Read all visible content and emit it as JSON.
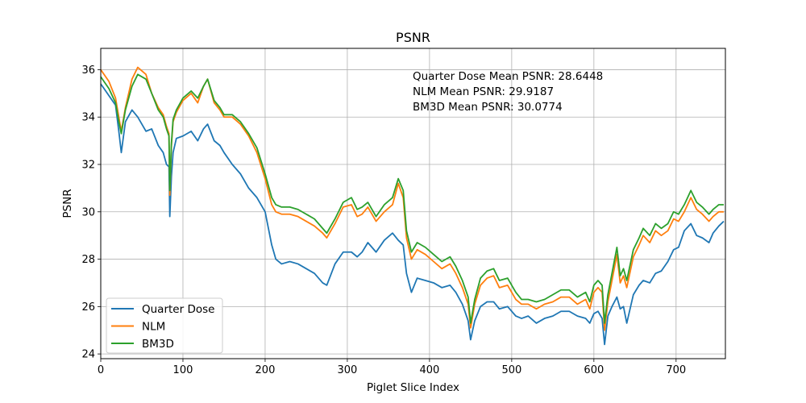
{
  "chart_data": {
    "type": "line",
    "title": "PSNR",
    "xlabel": "Piglet Slice Index",
    "ylabel": "PSNR",
    "xlim": [
      0,
      760
    ],
    "ylim": [
      23.8,
      36.9
    ],
    "xticks": [
      0,
      100,
      200,
      300,
      400,
      500,
      600,
      700
    ],
    "yticks": [
      24,
      26,
      28,
      30,
      32,
      34,
      36
    ],
    "grid": true,
    "legend_position": "lower-left",
    "annotations": [
      "Quarter Dose Mean PSNR: 28.6448",
      "NLM Mean PSNR: 29.9187",
      "BM3D Mean PSNR: 30.0774"
    ],
    "series": [
      {
        "name": "Quarter Dose",
        "color": "#1f77b4",
        "x": [
          0,
          10,
          18,
          22,
          25,
          30,
          38,
          45,
          55,
          62,
          70,
          76,
          80,
          83,
          84,
          86,
          88,
          92,
          100,
          110,
          118,
          125,
          130,
          138,
          145,
          150,
          160,
          170,
          180,
          190,
          200,
          208,
          213,
          220,
          230,
          240,
          250,
          260,
          270,
          275,
          285,
          295,
          305,
          312,
          318,
          325,
          335,
          345,
          355,
          362,
          368,
          372,
          378,
          385,
          395,
          405,
          415,
          425,
          432,
          440,
          447,
          450,
          455,
          462,
          470,
          478,
          485,
          495,
          505,
          512,
          520,
          530,
          540,
          550,
          560,
          570,
          580,
          590,
          595,
          600,
          605,
          610,
          613,
          617,
          622,
          628,
          632,
          636,
          640,
          648,
          655,
          660,
          668,
          675,
          682,
          690,
          697,
          703,
          710,
          718,
          725,
          732,
          740,
          745,
          752,
          758
        ],
        "values": [
          35.4,
          34.9,
          34.5,
          33.4,
          32.5,
          33.8,
          34.3,
          34.0,
          33.4,
          33.5,
          32.8,
          32.5,
          32.0,
          31.9,
          29.8,
          31.5,
          32.5,
          33.1,
          33.2,
          33.4,
          33.0,
          33.5,
          33.7,
          33.0,
          32.8,
          32.5,
          32.0,
          31.6,
          31.0,
          30.6,
          30.0,
          28.6,
          28.0,
          27.8,
          27.9,
          27.8,
          27.6,
          27.4,
          27.0,
          26.9,
          27.8,
          28.3,
          28.3,
          28.1,
          28.3,
          28.7,
          28.3,
          28.8,
          29.1,
          28.8,
          28.6,
          27.4,
          26.6,
          27.2,
          27.1,
          27.0,
          26.8,
          26.9,
          26.6,
          26.1,
          25.4,
          24.6,
          25.4,
          26.0,
          26.2,
          26.2,
          25.9,
          26.0,
          25.6,
          25.5,
          25.6,
          25.3,
          25.5,
          25.6,
          25.8,
          25.8,
          25.6,
          25.5,
          25.3,
          25.7,
          25.8,
          25.5,
          24.4,
          25.6,
          26.0,
          26.4,
          25.9,
          26.0,
          25.3,
          26.5,
          26.9,
          27.1,
          27.0,
          27.4,
          27.5,
          27.9,
          28.4,
          28.5,
          29.2,
          29.5,
          29.0,
          28.9,
          28.7,
          29.1,
          29.4,
          29.6
        ]
      },
      {
        "name": "NLM",
        "color": "#ff7f0e",
        "x": [
          0,
          10,
          18,
          22,
          25,
          30,
          38,
          45,
          55,
          62,
          70,
          76,
          80,
          83,
          84,
          86,
          88,
          92,
          100,
          110,
          118,
          125,
          130,
          138,
          145,
          150,
          160,
          170,
          180,
          190,
          200,
          208,
          213,
          220,
          230,
          240,
          250,
          260,
          270,
          275,
          285,
          295,
          305,
          312,
          318,
          325,
          335,
          345,
          355,
          362,
          368,
          372,
          378,
          385,
          395,
          405,
          415,
          425,
          432,
          440,
          447,
          450,
          455,
          462,
          470,
          478,
          485,
          495,
          505,
          512,
          520,
          530,
          540,
          550,
          560,
          570,
          580,
          590,
          595,
          600,
          605,
          610,
          613,
          617,
          622,
          628,
          632,
          636,
          640,
          648,
          655,
          660,
          668,
          675,
          682,
          690,
          697,
          703,
          710,
          718,
          725,
          732,
          740,
          745,
          752,
          758
        ],
        "values": [
          36.0,
          35.5,
          34.8,
          34.0,
          33.4,
          34.4,
          35.6,
          36.1,
          35.8,
          35.0,
          34.4,
          34.1,
          33.6,
          33.3,
          30.7,
          32.8,
          33.8,
          34.2,
          34.7,
          35.0,
          34.6,
          35.3,
          35.6,
          34.6,
          34.3,
          34.0,
          34.0,
          33.7,
          33.2,
          32.5,
          31.4,
          30.3,
          30.0,
          29.9,
          29.9,
          29.8,
          29.6,
          29.4,
          29.1,
          28.9,
          29.5,
          30.2,
          30.3,
          29.8,
          29.9,
          30.2,
          29.6,
          30.0,
          30.3,
          31.2,
          30.6,
          28.9,
          28.0,
          28.4,
          28.2,
          27.9,
          27.6,
          27.8,
          27.4,
          26.8,
          26.1,
          25.1,
          26.1,
          26.9,
          27.2,
          27.3,
          26.8,
          26.9,
          26.3,
          26.1,
          26.1,
          25.9,
          26.1,
          26.2,
          26.4,
          26.4,
          26.1,
          26.3,
          25.9,
          26.6,
          26.8,
          26.6,
          25.0,
          26.2,
          27.1,
          28.2,
          27.0,
          27.3,
          26.8,
          28.1,
          28.6,
          29.0,
          28.7,
          29.2,
          29.0,
          29.2,
          29.7,
          29.6,
          30.0,
          30.6,
          30.1,
          29.9,
          29.6,
          29.8,
          30.0,
          30.0
        ]
      },
      {
        "name": "BM3D",
        "color": "#2ca02c",
        "x": [
          0,
          10,
          18,
          22,
          25,
          30,
          38,
          45,
          55,
          62,
          70,
          76,
          80,
          83,
          84,
          86,
          88,
          92,
          100,
          110,
          118,
          125,
          130,
          138,
          145,
          150,
          160,
          170,
          180,
          190,
          200,
          208,
          213,
          220,
          230,
          240,
          250,
          260,
          270,
          275,
          285,
          295,
          305,
          312,
          318,
          325,
          335,
          345,
          355,
          362,
          368,
          372,
          378,
          385,
          395,
          405,
          415,
          425,
          432,
          440,
          447,
          450,
          455,
          462,
          470,
          478,
          485,
          495,
          505,
          512,
          520,
          530,
          540,
          550,
          560,
          570,
          580,
          590,
          595,
          600,
          605,
          610,
          613,
          617,
          622,
          628,
          632,
          636,
          640,
          648,
          655,
          660,
          668,
          675,
          682,
          690,
          697,
          703,
          710,
          718,
          725,
          732,
          740,
          745,
          752,
          758
        ],
        "values": [
          35.7,
          35.2,
          34.6,
          33.8,
          33.3,
          34.3,
          35.3,
          35.8,
          35.6,
          35.0,
          34.3,
          34.0,
          33.5,
          33.2,
          30.9,
          32.9,
          33.9,
          34.3,
          34.8,
          35.1,
          34.8,
          35.3,
          35.6,
          34.7,
          34.4,
          34.1,
          34.1,
          33.8,
          33.3,
          32.7,
          31.6,
          30.6,
          30.3,
          30.2,
          30.2,
          30.1,
          29.9,
          29.7,
          29.3,
          29.1,
          29.7,
          30.4,
          30.6,
          30.1,
          30.2,
          30.4,
          29.8,
          30.3,
          30.6,
          31.4,
          30.9,
          29.2,
          28.3,
          28.7,
          28.5,
          28.2,
          27.9,
          28.1,
          27.7,
          27.1,
          26.4,
          25.3,
          26.3,
          27.2,
          27.5,
          27.6,
          27.1,
          27.2,
          26.6,
          26.3,
          26.3,
          26.2,
          26.3,
          26.5,
          26.7,
          26.7,
          26.4,
          26.6,
          26.2,
          26.9,
          27.1,
          26.9,
          25.3,
          26.5,
          27.4,
          28.5,
          27.3,
          27.6,
          27.1,
          28.4,
          28.9,
          29.3,
          29.0,
          29.5,
          29.3,
          29.5,
          30.0,
          29.9,
          30.3,
          30.9,
          30.4,
          30.2,
          29.9,
          30.1,
          30.3,
          30.3
        ]
      }
    ]
  }
}
